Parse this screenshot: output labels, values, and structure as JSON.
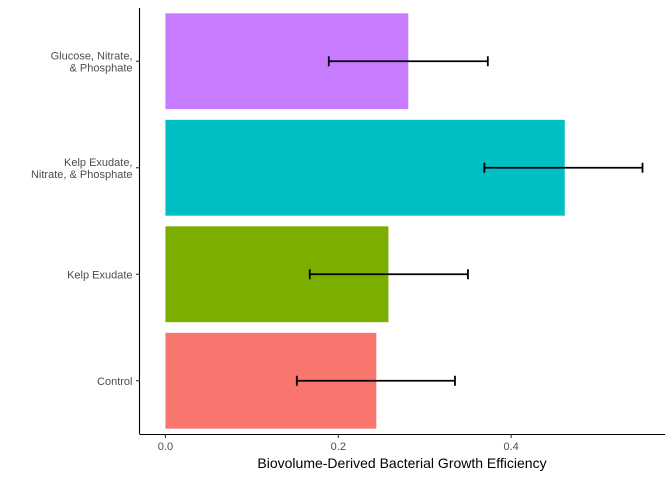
{
  "chart_data": {
    "type": "bar",
    "orientation": "horizontal",
    "title": "",
    "xlabel": "Biovolume-Derived Bacterial Growth Efficiency",
    "ylabel": "",
    "xlim": [
      -0.03,
      0.578
    ],
    "xticks": [
      0.0,
      0.2,
      0.4
    ],
    "xtick_labels": [
      "0.0",
      "0.2",
      "0.4"
    ],
    "grid": false,
    "legend": "none",
    "categories": [
      [
        "Control"
      ],
      [
        "Kelp Exudate"
      ],
      [
        "Kelp Exudate,",
        "Nitrate, & Phosphate"
      ],
      [
        "Glucose, Nitrate,",
        "& Phosphate"
      ]
    ],
    "values": [
      0.244,
      0.258,
      0.462,
      0.281
    ],
    "error_low": [
      0.152,
      0.167,
      0.369,
      0.189
    ],
    "error_high": [
      0.335,
      0.35,
      0.552,
      0.373
    ],
    "colors": [
      "#F8766D",
      "#7CAE00",
      "#00BFC4",
      "#C77CFF"
    ]
  }
}
